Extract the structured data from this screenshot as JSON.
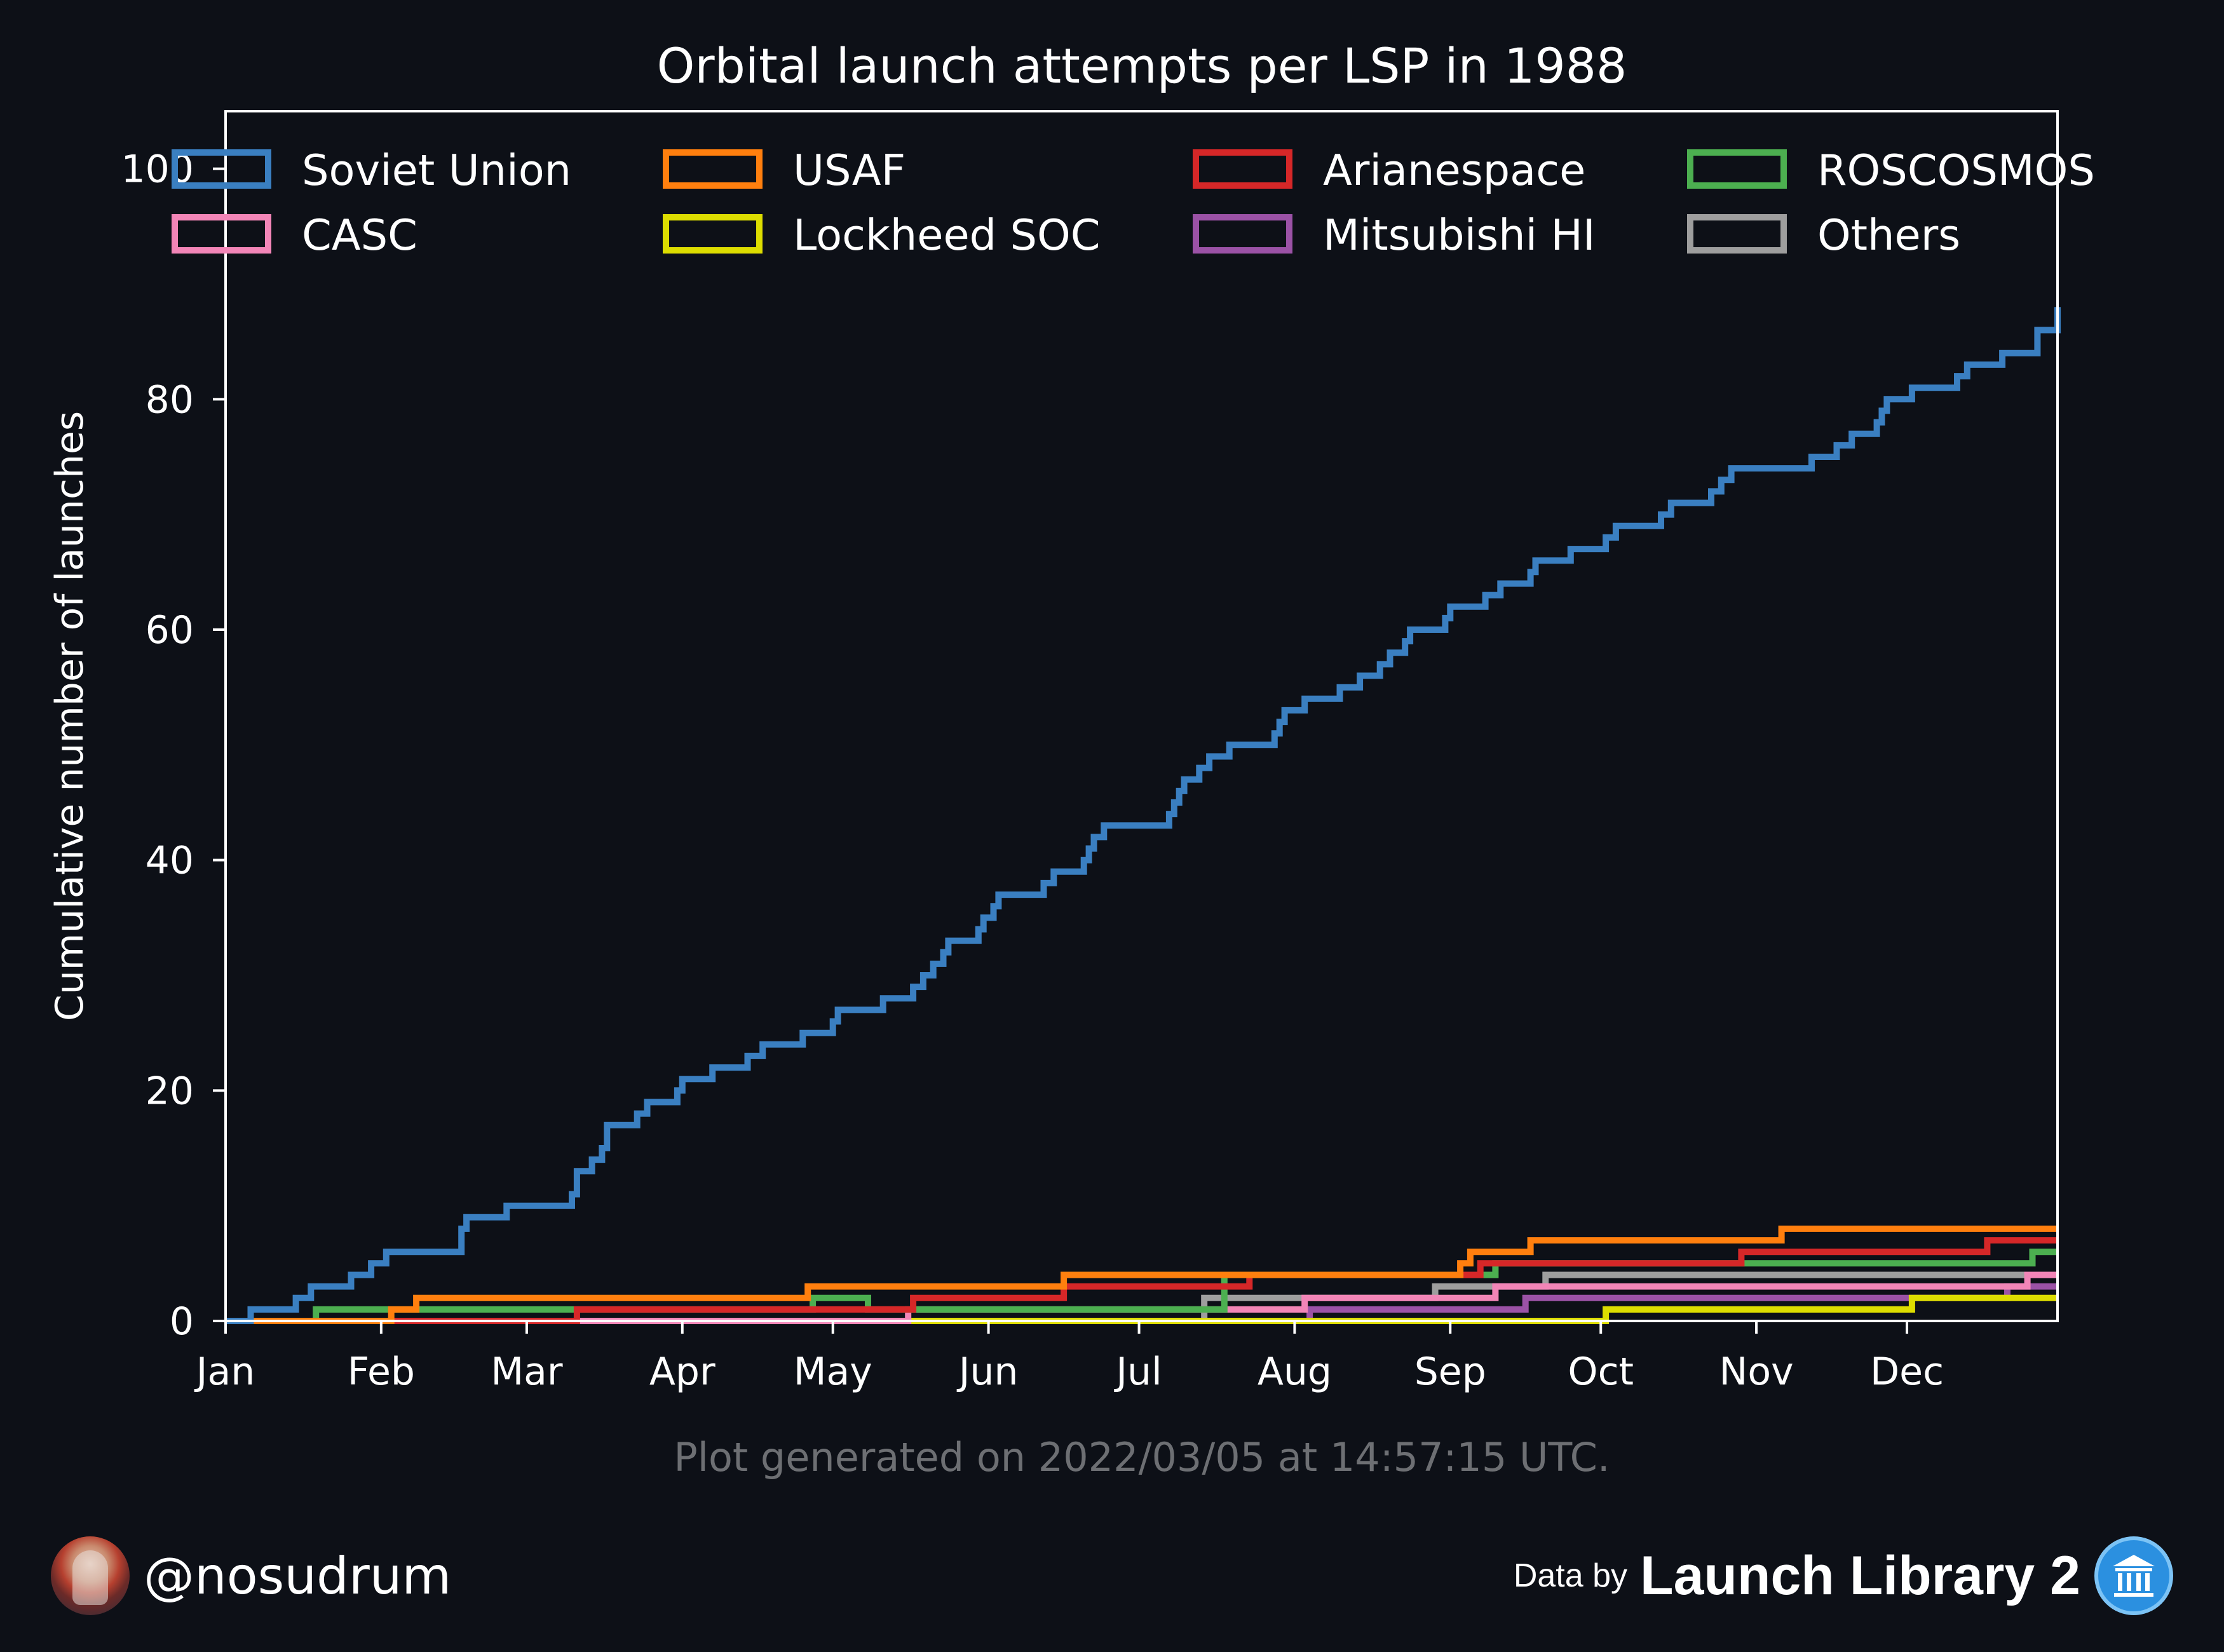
{
  "chart_data": {
    "type": "line",
    "subtype": "step-cumulative",
    "title": "Orbital launch attempts per LSP in 1988",
    "ylabel": "Cumulative number of launches",
    "xlabel": "",
    "x_unit": "day-of-year 1988",
    "xlim": [
      1,
      366
    ],
    "ylim": [
      0,
      105
    ],
    "x_ticks": [
      {
        "label": "Jan",
        "x": 1
      },
      {
        "label": "Feb",
        "x": 32
      },
      {
        "label": "Mar",
        "x": 61
      },
      {
        "label": "Apr",
        "x": 92
      },
      {
        "label": "May",
        "x": 122
      },
      {
        "label": "Jun",
        "x": 153
      },
      {
        "label": "Jul",
        "x": 183
      },
      {
        "label": "Aug",
        "x": 214
      },
      {
        "label": "Sep",
        "x": 245
      },
      {
        "label": "Oct",
        "x": 275
      },
      {
        "label": "Nov",
        "x": 306
      },
      {
        "label": "Dec",
        "x": 336
      }
    ],
    "y_ticks": [
      0,
      20,
      40,
      60,
      80,
      100
    ],
    "grid": false,
    "legend_position": "top",
    "legend_columns": 4,
    "series": [
      {
        "name": "Soviet Union",
        "color": "#3a7fc1",
        "steps": [
          [
            6,
            1
          ],
          [
            15,
            2
          ],
          [
            18,
            3
          ],
          [
            26,
            4
          ],
          [
            30,
            5
          ],
          [
            33,
            6
          ],
          [
            48,
            8
          ],
          [
            49,
            9
          ],
          [
            57,
            10
          ],
          [
            70,
            11
          ],
          [
            71,
            13
          ],
          [
            74,
            14
          ],
          [
            76,
            15
          ],
          [
            77,
            17
          ],
          [
            83,
            18
          ],
          [
            85,
            19
          ],
          [
            91,
            20
          ],
          [
            92,
            21
          ],
          [
            98,
            22
          ],
          [
            105,
            23
          ],
          [
            108,
            24
          ],
          [
            116,
            25
          ],
          [
            122,
            26
          ],
          [
            123,
            27
          ],
          [
            132,
            28
          ],
          [
            138,
            29
          ],
          [
            140,
            30
          ],
          [
            142,
            31
          ],
          [
            144,
            32
          ],
          [
            145,
            33
          ],
          [
            151,
            34
          ],
          [
            152,
            35
          ],
          [
            154,
            36
          ],
          [
            155,
            37
          ],
          [
            164,
            38
          ],
          [
            166,
            39
          ],
          [
            172,
            40
          ],
          [
            173,
            41
          ],
          [
            174,
            42
          ],
          [
            176,
            43
          ],
          [
            189,
            44
          ],
          [
            190,
            45
          ],
          [
            191,
            46
          ],
          [
            192,
            47
          ],
          [
            195,
            48
          ],
          [
            197,
            49
          ],
          [
            201,
            50
          ],
          [
            210,
            51
          ],
          [
            211,
            52
          ],
          [
            212,
            53
          ],
          [
            216,
            54
          ],
          [
            223,
            55
          ],
          [
            227,
            56
          ],
          [
            231,
            57
          ],
          [
            233,
            58
          ],
          [
            236,
            59
          ],
          [
            237,
            60
          ],
          [
            244,
            61
          ],
          [
            245,
            62
          ],
          [
            252,
            63
          ],
          [
            255,
            64
          ],
          [
            261,
            65
          ],
          [
            262,
            66
          ],
          [
            269,
            67
          ],
          [
            276,
            68
          ],
          [
            278,
            69
          ],
          [
            287,
            70
          ],
          [
            289,
            71
          ],
          [
            297,
            72
          ],
          [
            299,
            73
          ],
          [
            301,
            74
          ],
          [
            317,
            75
          ],
          [
            322,
            76
          ],
          [
            325,
            77
          ],
          [
            330,
            78
          ],
          [
            331,
            79
          ],
          [
            332,
            80
          ],
          [
            337,
            81
          ],
          [
            346,
            82
          ],
          [
            348,
            83
          ],
          [
            355,
            84
          ],
          [
            362,
            86
          ],
          [
            366,
            87
          ],
          [
            367,
            88
          ]
        ]
      },
      {
        "name": "USAF",
        "color": "#ff7f0e",
        "steps": [
          [
            34,
            1
          ],
          [
            39,
            2
          ],
          [
            117,
            3
          ],
          [
            168,
            4
          ],
          [
            247,
            5
          ],
          [
            249,
            6
          ],
          [
            261,
            7
          ],
          [
            311,
            8
          ]
        ]
      },
      {
        "name": "Arianespace",
        "color": "#d62728",
        "steps": [
          [
            71,
            1
          ],
          [
            138,
            2
          ],
          [
            168,
            3
          ],
          [
            205,
            4
          ],
          [
            251,
            5
          ],
          [
            303,
            6
          ],
          [
            352,
            7
          ]
        ]
      },
      {
        "name": "ROSCOSMOS",
        "color": "#4caf50",
        "steps": [
          [
            19,
            1
          ],
          [
            118,
            2
          ],
          [
            129,
            1
          ],
          [
            200,
            4
          ],
          [
            254,
            5
          ],
          [
            304,
            5
          ],
          [
            361,
            6
          ]
        ]
      },
      {
        "name": "CASC",
        "color": "#f285b7",
        "steps": [
          [
            137,
            1
          ],
          [
            216,
            2
          ],
          [
            254,
            3
          ],
          [
            360,
            4
          ]
        ]
      },
      {
        "name": "Lockheed SOC",
        "color": "#dddd00",
        "steps": [
          [
            276,
            1
          ],
          [
            337,
            2
          ]
        ]
      },
      {
        "name": "Mitsubishi HI",
        "color": "#9b52a6",
        "steps": [
          [
            217,
            1
          ],
          [
            260,
            2
          ],
          [
            356,
            3
          ]
        ]
      },
      {
        "name": "Others",
        "color": "#9e9e9e",
        "steps": [
          [
            196,
            2
          ],
          [
            242,
            3
          ],
          [
            264,
            4
          ]
        ]
      }
    ]
  },
  "footnote": "Plot generated on 2022/03/05 at 14:57:15 UTC.",
  "footer": {
    "handle": "@nosudrum",
    "data_by": "Data by",
    "source": "Launch Library 2",
    "avatar_icon": "avatar-icon",
    "source_icon": "launch-library-logo-icon"
  }
}
